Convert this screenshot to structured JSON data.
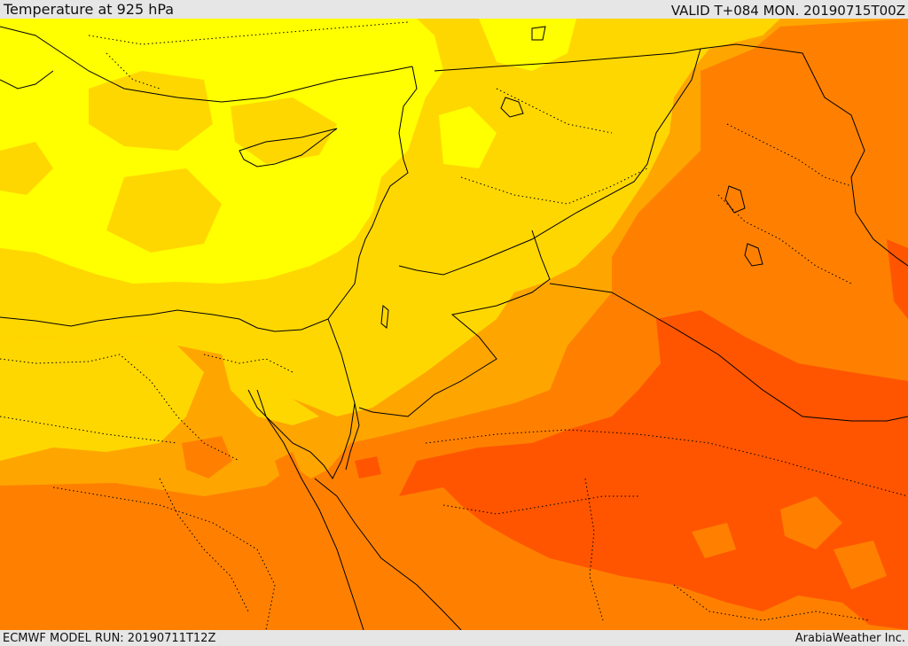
{
  "header": {
    "title": "Temperature at 925 hPa",
    "valid": "VALID T+084 MON. 20190715T00Z"
  },
  "footer": {
    "model_run": "ECMWF MODEL RUN: 20190711T12Z",
    "credit": "ArabiaWeather Inc."
  },
  "colors": {
    "band_1": "#ffff00",
    "band_2": "#ffd700",
    "band_3": "#ffa500",
    "band_4": "#ff8000",
    "band_5": "#ff5500",
    "border": "#000000",
    "frame": "#e6e6e6"
  }
}
